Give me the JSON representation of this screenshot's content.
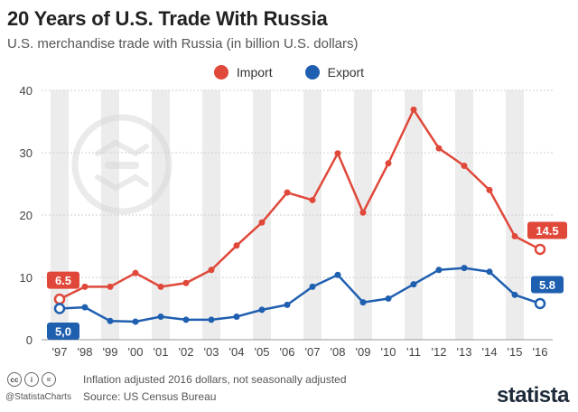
{
  "header": {
    "title": "20 Years of U.S. Trade With Russia",
    "subtitle": "U.S. merchandise trade with Russia (in billion U.S. dollars)"
  },
  "legend": {
    "import_label": "Import",
    "export_label": "Export"
  },
  "colors": {
    "import": "#e0483a",
    "export": "#1f5fb0",
    "band": "#ececec"
  },
  "chart_data": {
    "type": "line",
    "categories": [
      "'97",
      "'98",
      "'99",
      "'00",
      "'01",
      "'02",
      "'03",
      "'04",
      "'05",
      "'06",
      "'07",
      "'08",
      "'09",
      "'10",
      "'11",
      "'12",
      "'13",
      "'14",
      "'15",
      "'16"
    ],
    "series": [
      {
        "name": "Import",
        "values": [
          6.5,
          8.5,
          8.5,
          10.7,
          8.5,
          9.1,
          11.2,
          15.1,
          18.8,
          23.6,
          22.4,
          29.9,
          20.4,
          28.3,
          36.9,
          30.7,
          27.9,
          24.0,
          16.6,
          14.5
        ]
      },
      {
        "name": "Export",
        "values": [
          5.0,
          5.2,
          3.0,
          2.9,
          3.7,
          3.2,
          3.2,
          3.7,
          4.8,
          5.6,
          8.5,
          10.4,
          6.0,
          6.6,
          8.9,
          11.2,
          11.5,
          10.9,
          7.2,
          5.8
        ]
      }
    ],
    "ylim": [
      0,
      40
    ],
    "yticks": [
      "0",
      "10",
      "20",
      "30",
      "40"
    ],
    "callouts": {
      "import_first": "6.5",
      "export_first": "5,0",
      "import_last": "14.5",
      "export_last": "5.8"
    },
    "grid": true,
    "legend_position": "top-center"
  },
  "footer": {
    "note": "Inflation adjusted 2016 dollars, not seasonally adjusted",
    "source": "Source: US Census Bureau",
    "handle": "@StatistaCharts",
    "brand": "statista"
  }
}
